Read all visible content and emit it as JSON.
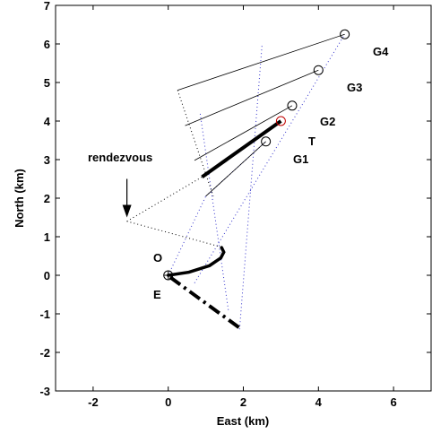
{
  "chart_data": {
    "type": "line",
    "xlabel": "East (km)",
    "ylabel": "North (km)",
    "xlim": [
      -3,
      7
    ],
    "ylim": [
      -3,
      7
    ],
    "x_ticks": [
      -2,
      0,
      2,
      4,
      6
    ],
    "y_ticks": [
      -3,
      -2,
      -1,
      0,
      1,
      2,
      3,
      4,
      5,
      6,
      7
    ],
    "grid": false,
    "labels": {
      "G4": "G4",
      "G3": "G3",
      "G2": "G2",
      "T": "T",
      "G1": "G1",
      "O": "O",
      "E": "E",
      "rendezvous": "rendezvous"
    },
    "markers": [
      {
        "id": "G4",
        "x": 4.7,
        "y": 6.25,
        "color": "#000000"
      },
      {
        "id": "G3",
        "x": 4.0,
        "y": 5.32,
        "color": "#000000"
      },
      {
        "id": "G2",
        "x": 3.3,
        "y": 4.4,
        "color": "#000000"
      },
      {
        "id": "T",
        "x": 3.0,
        "y": 4.0,
        "color": "#c00000"
      },
      {
        "id": "G1",
        "x": 2.6,
        "y": 3.47,
        "color": "#000000"
      },
      {
        "id": "O",
        "x": 0.0,
        "y": 0.0,
        "color": "#000000"
      }
    ],
    "thin_lines": [
      {
        "x": [
          0.25,
          4.7
        ],
        "y": [
          4.8,
          6.25
        ]
      },
      {
        "x": [
          0.45,
          4.0
        ],
        "y": [
          3.88,
          5.32
        ]
      },
      {
        "x": [
          0.7,
          3.3
        ],
        "y": [
          2.98,
          4.4
        ]
      },
      {
        "x": [
          1.0,
          2.6
        ],
        "y": [
          2.05,
          3.47
        ]
      }
    ],
    "thick_lines": [
      {
        "x": [
          0.9,
          3.0
        ],
        "y": [
          2.55,
          4.0
        ],
        "style": "solid"
      },
      {
        "x": [
          0.05,
          1.95
        ],
        "y": [
          -0.05,
          -1.4
        ],
        "style": "dashdot"
      }
    ],
    "curve": {
      "x": [
        0.0,
        0.55,
        1.1,
        1.4,
        1.48,
        1.42
      ],
      "y": [
        0.0,
        0.08,
        0.25,
        0.45,
        0.6,
        0.72
      ]
    },
    "dotted_black": [
      {
        "x": [
          0.25,
          1.2
        ],
        "y": [
          4.8,
          2.05
        ]
      },
      {
        "x": [
          -1.1,
          0.9
        ],
        "y": [
          1.4,
          2.55
        ]
      },
      {
        "x": [
          -1.1,
          1.35
        ],
        "y": [
          1.4,
          0.75
        ]
      }
    ],
    "dotted_blue": [
      {
        "x": [
          1.9,
          2.5
        ],
        "y": [
          -1.4,
          6.0
        ]
      },
      {
        "x": [
          0.0,
          1.0
        ],
        "y": [
          0.0,
          2.05
        ]
      },
      {
        "x": [
          1.0,
          2.6
        ],
        "y": [
          2.05,
          3.47
        ]
      },
      {
        "x": [
          0.7,
          4.7
        ],
        "y": [
          -0.2,
          6.25
        ]
      },
      {
        "x": [
          1.6,
          0.85
        ],
        "y": [
          -0.9,
          4.2
        ]
      }
    ],
    "arrow": {
      "from": [
        -1.1,
        2.5
      ],
      "to": [
        -1.1,
        1.5
      ]
    }
  }
}
